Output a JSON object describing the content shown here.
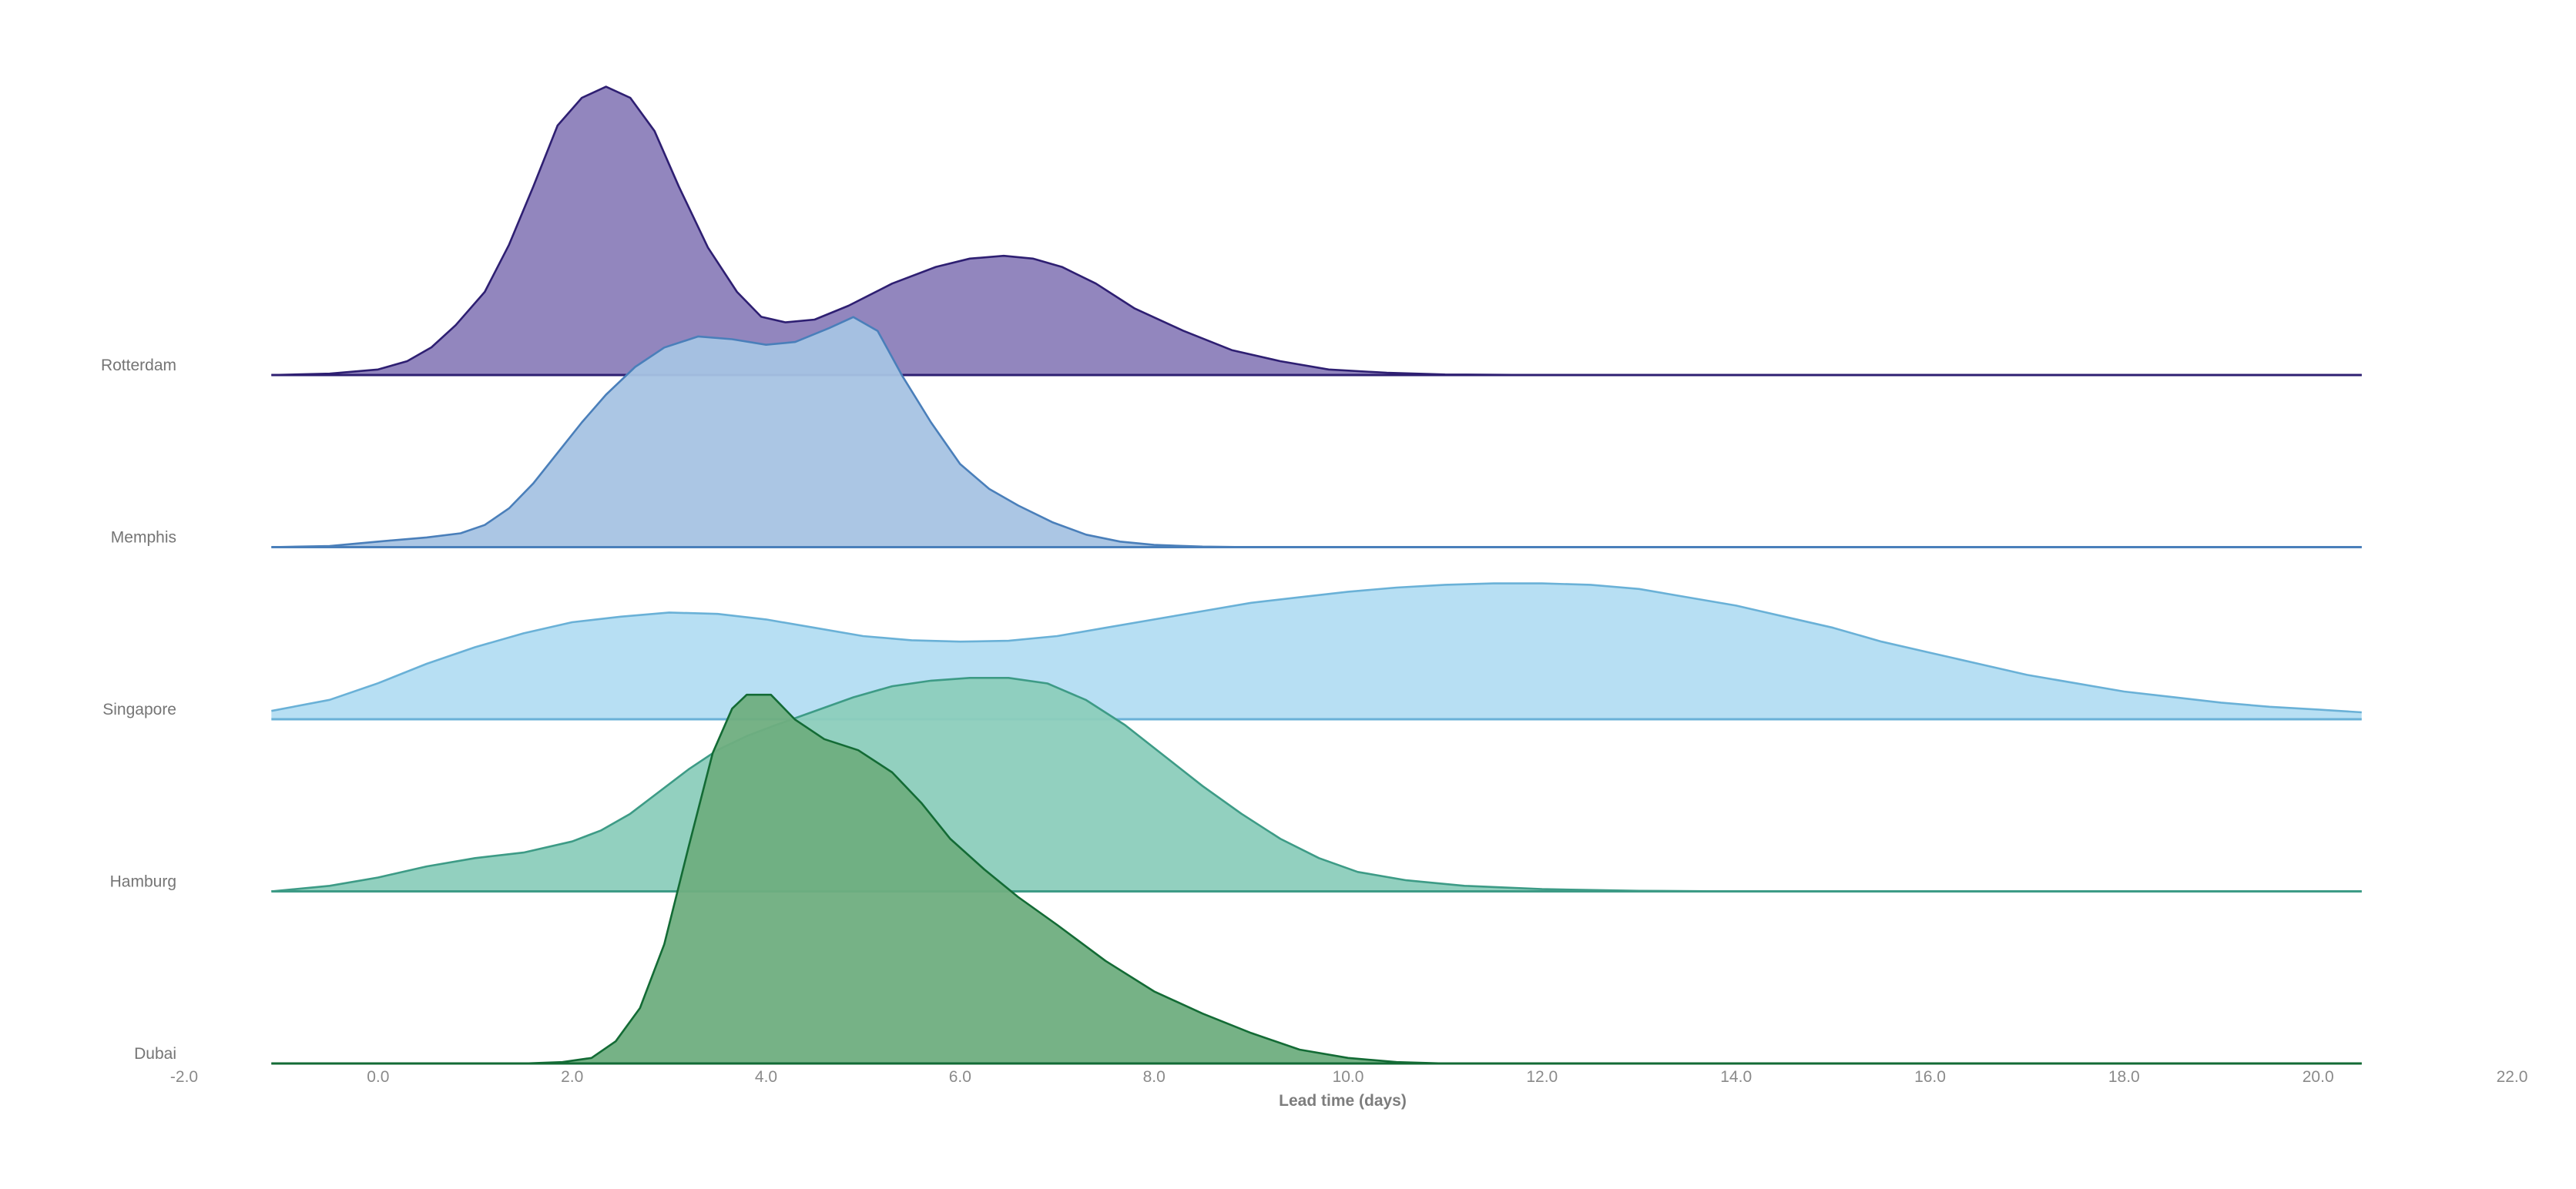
{
  "chart_data": {
    "type": "ridgeline",
    "xlabel": "Lead time (days)",
    "xlim": [
      -2.0,
      22.0
    ],
    "xticks": [
      -2.0,
      0.0,
      2.0,
      4.0,
      6.0,
      8.0,
      10.0,
      12.0,
      14.0,
      16.0,
      18.0,
      20.0,
      22.0
    ],
    "xticklabels": [
      "-2.0",
      "0.0",
      "2.0",
      "4.0",
      "6.0",
      "8.0",
      "10.0",
      "12.0",
      "14.0",
      "16.0",
      "18.0",
      "20.0",
      "22.0"
    ],
    "density_range": [
      -1.1,
      20.45
    ],
    "grid": false,
    "legend": "none",
    "series": [
      {
        "name": "Rotterdam",
        "fill": "#8c80bb",
        "stroke": "#2e1f72",
        "points": [
          [
            -1.1,
            0.0
          ],
          [
            -0.5,
            0.005
          ],
          [
            0.0,
            0.02
          ],
          [
            0.3,
            0.05
          ],
          [
            0.55,
            0.1
          ],
          [
            0.8,
            0.18
          ],
          [
            1.1,
            0.3
          ],
          [
            1.35,
            0.47
          ],
          [
            1.6,
            0.68
          ],
          [
            1.85,
            0.9
          ],
          [
            2.1,
            1.0
          ],
          [
            2.35,
            1.04
          ],
          [
            2.6,
            1.0
          ],
          [
            2.85,
            0.88
          ],
          [
            3.1,
            0.68
          ],
          [
            3.4,
            0.46
          ],
          [
            3.7,
            0.3
          ],
          [
            3.95,
            0.21
          ],
          [
            4.2,
            0.19
          ],
          [
            4.5,
            0.2
          ],
          [
            4.85,
            0.25
          ],
          [
            5.3,
            0.33
          ],
          [
            5.75,
            0.39
          ],
          [
            6.1,
            0.42
          ],
          [
            6.45,
            0.43
          ],
          [
            6.75,
            0.42
          ],
          [
            7.05,
            0.39
          ],
          [
            7.4,
            0.33
          ],
          [
            7.8,
            0.24
          ],
          [
            8.3,
            0.16
          ],
          [
            8.8,
            0.09
          ],
          [
            9.3,
            0.05
          ],
          [
            9.8,
            0.02
          ],
          [
            10.4,
            0.008
          ],
          [
            11.0,
            0.002
          ],
          [
            12.0,
            0.0
          ],
          [
            20.45,
            0.0
          ]
        ]
      },
      {
        "name": "Memphis",
        "fill": "#a6c3e3",
        "stroke": "#4a7fba",
        "points": [
          [
            -1.1,
            0.0
          ],
          [
            -0.5,
            0.004
          ],
          [
            0.0,
            0.02
          ],
          [
            0.5,
            0.035
          ],
          [
            0.85,
            0.05
          ],
          [
            1.1,
            0.08
          ],
          [
            1.35,
            0.14
          ],
          [
            1.6,
            0.23
          ],
          [
            1.85,
            0.34
          ],
          [
            2.1,
            0.45
          ],
          [
            2.35,
            0.55
          ],
          [
            2.65,
            0.65
          ],
          [
            2.95,
            0.72
          ],
          [
            3.3,
            0.76
          ],
          [
            3.65,
            0.75
          ],
          [
            4.0,
            0.73
          ],
          [
            4.3,
            0.74
          ],
          [
            4.65,
            0.79
          ],
          [
            4.9,
            0.83
          ],
          [
            5.15,
            0.78
          ],
          [
            5.4,
            0.62
          ],
          [
            5.7,
            0.45
          ],
          [
            6.0,
            0.3
          ],
          [
            6.3,
            0.21
          ],
          [
            6.6,
            0.15
          ],
          [
            6.95,
            0.09
          ],
          [
            7.3,
            0.045
          ],
          [
            7.65,
            0.02
          ],
          [
            8.0,
            0.008
          ],
          [
            8.5,
            0.002
          ],
          [
            9.0,
            0.0
          ],
          [
            20.45,
            0.0
          ]
        ]
      },
      {
        "name": "Singapore",
        "fill": "#b3ddf2",
        "stroke": "#6ab1d7",
        "points": [
          [
            -1.1,
            0.03
          ],
          [
            -0.5,
            0.07
          ],
          [
            0.0,
            0.13
          ],
          [
            0.5,
            0.2
          ],
          [
            1.0,
            0.26
          ],
          [
            1.5,
            0.31
          ],
          [
            2.0,
            0.35
          ],
          [
            2.5,
            0.37
          ],
          [
            3.0,
            0.385
          ],
          [
            3.5,
            0.38
          ],
          [
            4.0,
            0.36
          ],
          [
            4.5,
            0.33
          ],
          [
            5.0,
            0.3
          ],
          [
            5.5,
            0.285
          ],
          [
            6.0,
            0.28
          ],
          [
            6.5,
            0.283
          ],
          [
            7.0,
            0.3
          ],
          [
            7.5,
            0.33
          ],
          [
            8.0,
            0.36
          ],
          [
            8.5,
            0.39
          ],
          [
            9.0,
            0.42
          ],
          [
            9.5,
            0.44
          ],
          [
            10.0,
            0.46
          ],
          [
            10.5,
            0.475
          ],
          [
            11.0,
            0.485
          ],
          [
            11.5,
            0.49
          ],
          [
            12.0,
            0.49
          ],
          [
            12.5,
            0.485
          ],
          [
            13.0,
            0.47
          ],
          [
            13.5,
            0.44
          ],
          [
            14.0,
            0.41
          ],
          [
            14.5,
            0.37
          ],
          [
            15.0,
            0.33
          ],
          [
            15.5,
            0.28
          ],
          [
            16.0,
            0.24
          ],
          [
            16.5,
            0.2
          ],
          [
            17.0,
            0.16
          ],
          [
            17.5,
            0.13
          ],
          [
            18.0,
            0.1
          ],
          [
            18.5,
            0.08
          ],
          [
            19.0,
            0.06
          ],
          [
            19.5,
            0.045
          ],
          [
            20.0,
            0.035
          ],
          [
            20.45,
            0.025
          ]
        ]
      },
      {
        "name": "Hamburg",
        "fill": "#8ccdbc",
        "stroke": "#3d9b86",
        "points": [
          [
            -1.1,
            0.0
          ],
          [
            -0.5,
            0.02
          ],
          [
            0.0,
            0.05
          ],
          [
            0.5,
            0.09
          ],
          [
            1.0,
            0.12
          ],
          [
            1.5,
            0.14
          ],
          [
            2.0,
            0.18
          ],
          [
            2.3,
            0.22
          ],
          [
            2.6,
            0.28
          ],
          [
            2.9,
            0.36
          ],
          [
            3.2,
            0.44
          ],
          [
            3.5,
            0.51
          ],
          [
            3.8,
            0.56
          ],
          [
            4.1,
            0.6
          ],
          [
            4.5,
            0.65
          ],
          [
            4.9,
            0.7
          ],
          [
            5.3,
            0.74
          ],
          [
            5.7,
            0.76
          ],
          [
            6.1,
            0.77
          ],
          [
            6.5,
            0.77
          ],
          [
            6.9,
            0.75
          ],
          [
            7.3,
            0.69
          ],
          [
            7.7,
            0.6
          ],
          [
            8.1,
            0.49
          ],
          [
            8.5,
            0.38
          ],
          [
            8.9,
            0.28
          ],
          [
            9.3,
            0.19
          ],
          [
            9.7,
            0.12
          ],
          [
            10.1,
            0.07
          ],
          [
            10.6,
            0.04
          ],
          [
            11.2,
            0.02
          ],
          [
            12.0,
            0.008
          ],
          [
            13.0,
            0.002
          ],
          [
            14.0,
            0.0
          ],
          [
            20.45,
            0.0
          ]
        ]
      },
      {
        "name": "Dubai",
        "fill": "#6fae7f",
        "stroke": "#136b35",
        "points": [
          [
            -1.1,
            0.0
          ],
          [
            0.0,
            0.0
          ],
          [
            1.5,
            0.0
          ],
          [
            1.9,
            0.005
          ],
          [
            2.2,
            0.02
          ],
          [
            2.45,
            0.08
          ],
          [
            2.7,
            0.2
          ],
          [
            2.95,
            0.43
          ],
          [
            3.2,
            0.78
          ],
          [
            3.45,
            1.12
          ],
          [
            3.65,
            1.28
          ],
          [
            3.8,
            1.33
          ],
          [
            4.05,
            1.33
          ],
          [
            4.3,
            1.24
          ],
          [
            4.6,
            1.17
          ],
          [
            4.95,
            1.13
          ],
          [
            5.3,
            1.05
          ],
          [
            5.6,
            0.94
          ],
          [
            5.9,
            0.81
          ],
          [
            6.25,
            0.7
          ],
          [
            6.6,
            0.6
          ],
          [
            7.0,
            0.5
          ],
          [
            7.5,
            0.37
          ],
          [
            8.0,
            0.26
          ],
          [
            8.5,
            0.18
          ],
          [
            9.0,
            0.11
          ],
          [
            9.5,
            0.05
          ],
          [
            10.0,
            0.02
          ],
          [
            10.5,
            0.005
          ],
          [
            11.0,
            0.0
          ],
          [
            20.45,
            0.0
          ]
        ]
      }
    ]
  }
}
